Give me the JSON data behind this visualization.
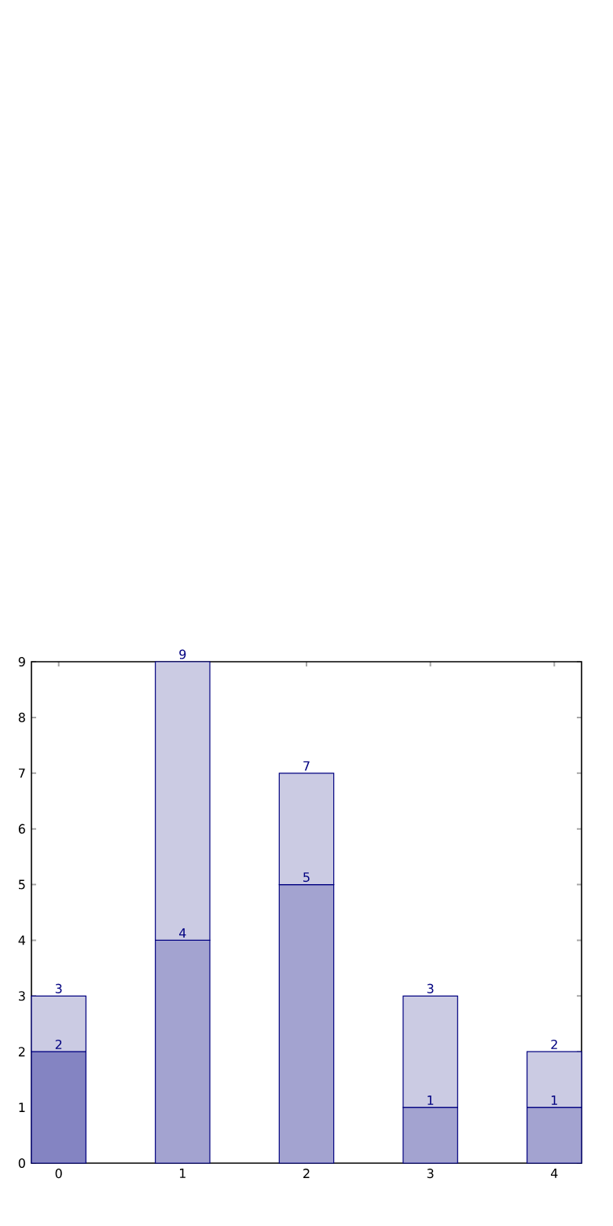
{
  "chart_data": {
    "type": "bar",
    "stacked": true,
    "categories": [
      "0",
      "1",
      "2",
      "3",
      "4"
    ],
    "series": [
      {
        "colors": [
          "#8484c2",
          "#a3a3d0",
          "#a3a3d0",
          "#a3a3d0",
          "#a3a3d0"
        ],
        "values": [
          2,
          4,
          5,
          1,
          1
        ],
        "value_labels": [
          "2",
          "4",
          "5",
          "1",
          "1"
        ]
      },
      {
        "color": "#cbcbe3",
        "values": [
          1,
          5,
          2,
          2,
          1
        ]
      }
    ],
    "totals": [
      "3",
      "9",
      "7",
      "3",
      "2"
    ],
    "ylim": [
      0,
      9
    ],
    "yticks": [
      0,
      1,
      2,
      3,
      4,
      5,
      6,
      7,
      8,
      9
    ]
  }
}
